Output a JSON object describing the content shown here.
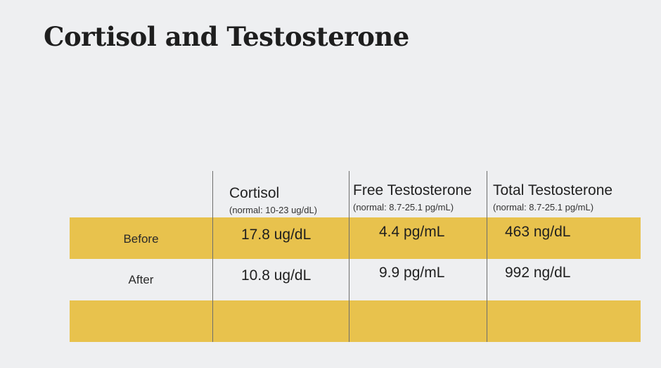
{
  "title": "Cortisol and Testosterone",
  "table": {
    "columns": [
      {
        "title": "Cortisol",
        "note": "(normal: 10-23 ug/dL)"
      },
      {
        "title": "Free Testosterone",
        "note": "(normal: 8.7-25.1 pg/mL)"
      },
      {
        "title": "Total Testosterone",
        "note": "(normal: 8.7-25.1 pg/mL)"
      }
    ],
    "rows": [
      {
        "label": "Before",
        "values": [
          "17.8 ug/dL",
          "4.4 pg/mL",
          "463 ng/dL"
        ]
      },
      {
        "label": "After",
        "values": [
          "10.8 ug/dL",
          "9.9 pg/mL",
          "992 ng/dL"
        ]
      },
      {
        "label": "",
        "values": [
          "",
          "",
          ""
        ]
      }
    ]
  },
  "colors": {
    "background": "#eeeff1",
    "band": "#e8c24d",
    "grid_line": "#6e6e6e"
  }
}
